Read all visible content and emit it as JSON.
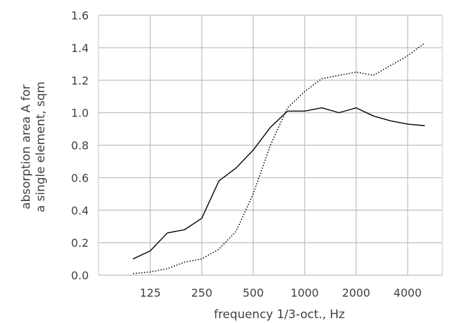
{
  "chart_data": {
    "type": "line",
    "xlabel": "frequency 1/3-oct., Hz",
    "ylabel": [
      "absorption area A for",
      "a single element, sqm"
    ],
    "x": [
      "100",
      "125",
      "160",
      "200",
      "250",
      "315",
      "400",
      "500",
      "630",
      "800",
      "1000",
      "1250",
      "1600",
      "2000",
      "2500",
      "3150",
      "4000",
      "5000"
    ],
    "x_tick_labels": [
      "125",
      "250",
      "500",
      "1000",
      "2000",
      "4000"
    ],
    "ylim": [
      0.0,
      1.6
    ],
    "y_ticks": [
      "0.0",
      "0.2",
      "0.4",
      "0.6",
      "0.8",
      "1.0",
      "1.2",
      "1.4",
      "1.6"
    ],
    "grid": true,
    "series": [
      {
        "style": "solid",
        "color": "#000000",
        "values": [
          0.1,
          0.15,
          0.26,
          0.28,
          0.35,
          0.58,
          0.66,
          0.77,
          0.91,
          1.01,
          1.01,
          1.03,
          1.0,
          1.03,
          0.98,
          0.95,
          0.93,
          0.92
        ]
      },
      {
        "style": "dotted",
        "color": "#000000",
        "values": [
          0.01,
          0.02,
          0.04,
          0.08,
          0.1,
          0.16,
          0.27,
          0.5,
          0.8,
          1.03,
          1.13,
          1.21,
          1.23,
          1.25,
          1.23,
          1.29,
          1.35,
          1.43
        ]
      }
    ]
  }
}
